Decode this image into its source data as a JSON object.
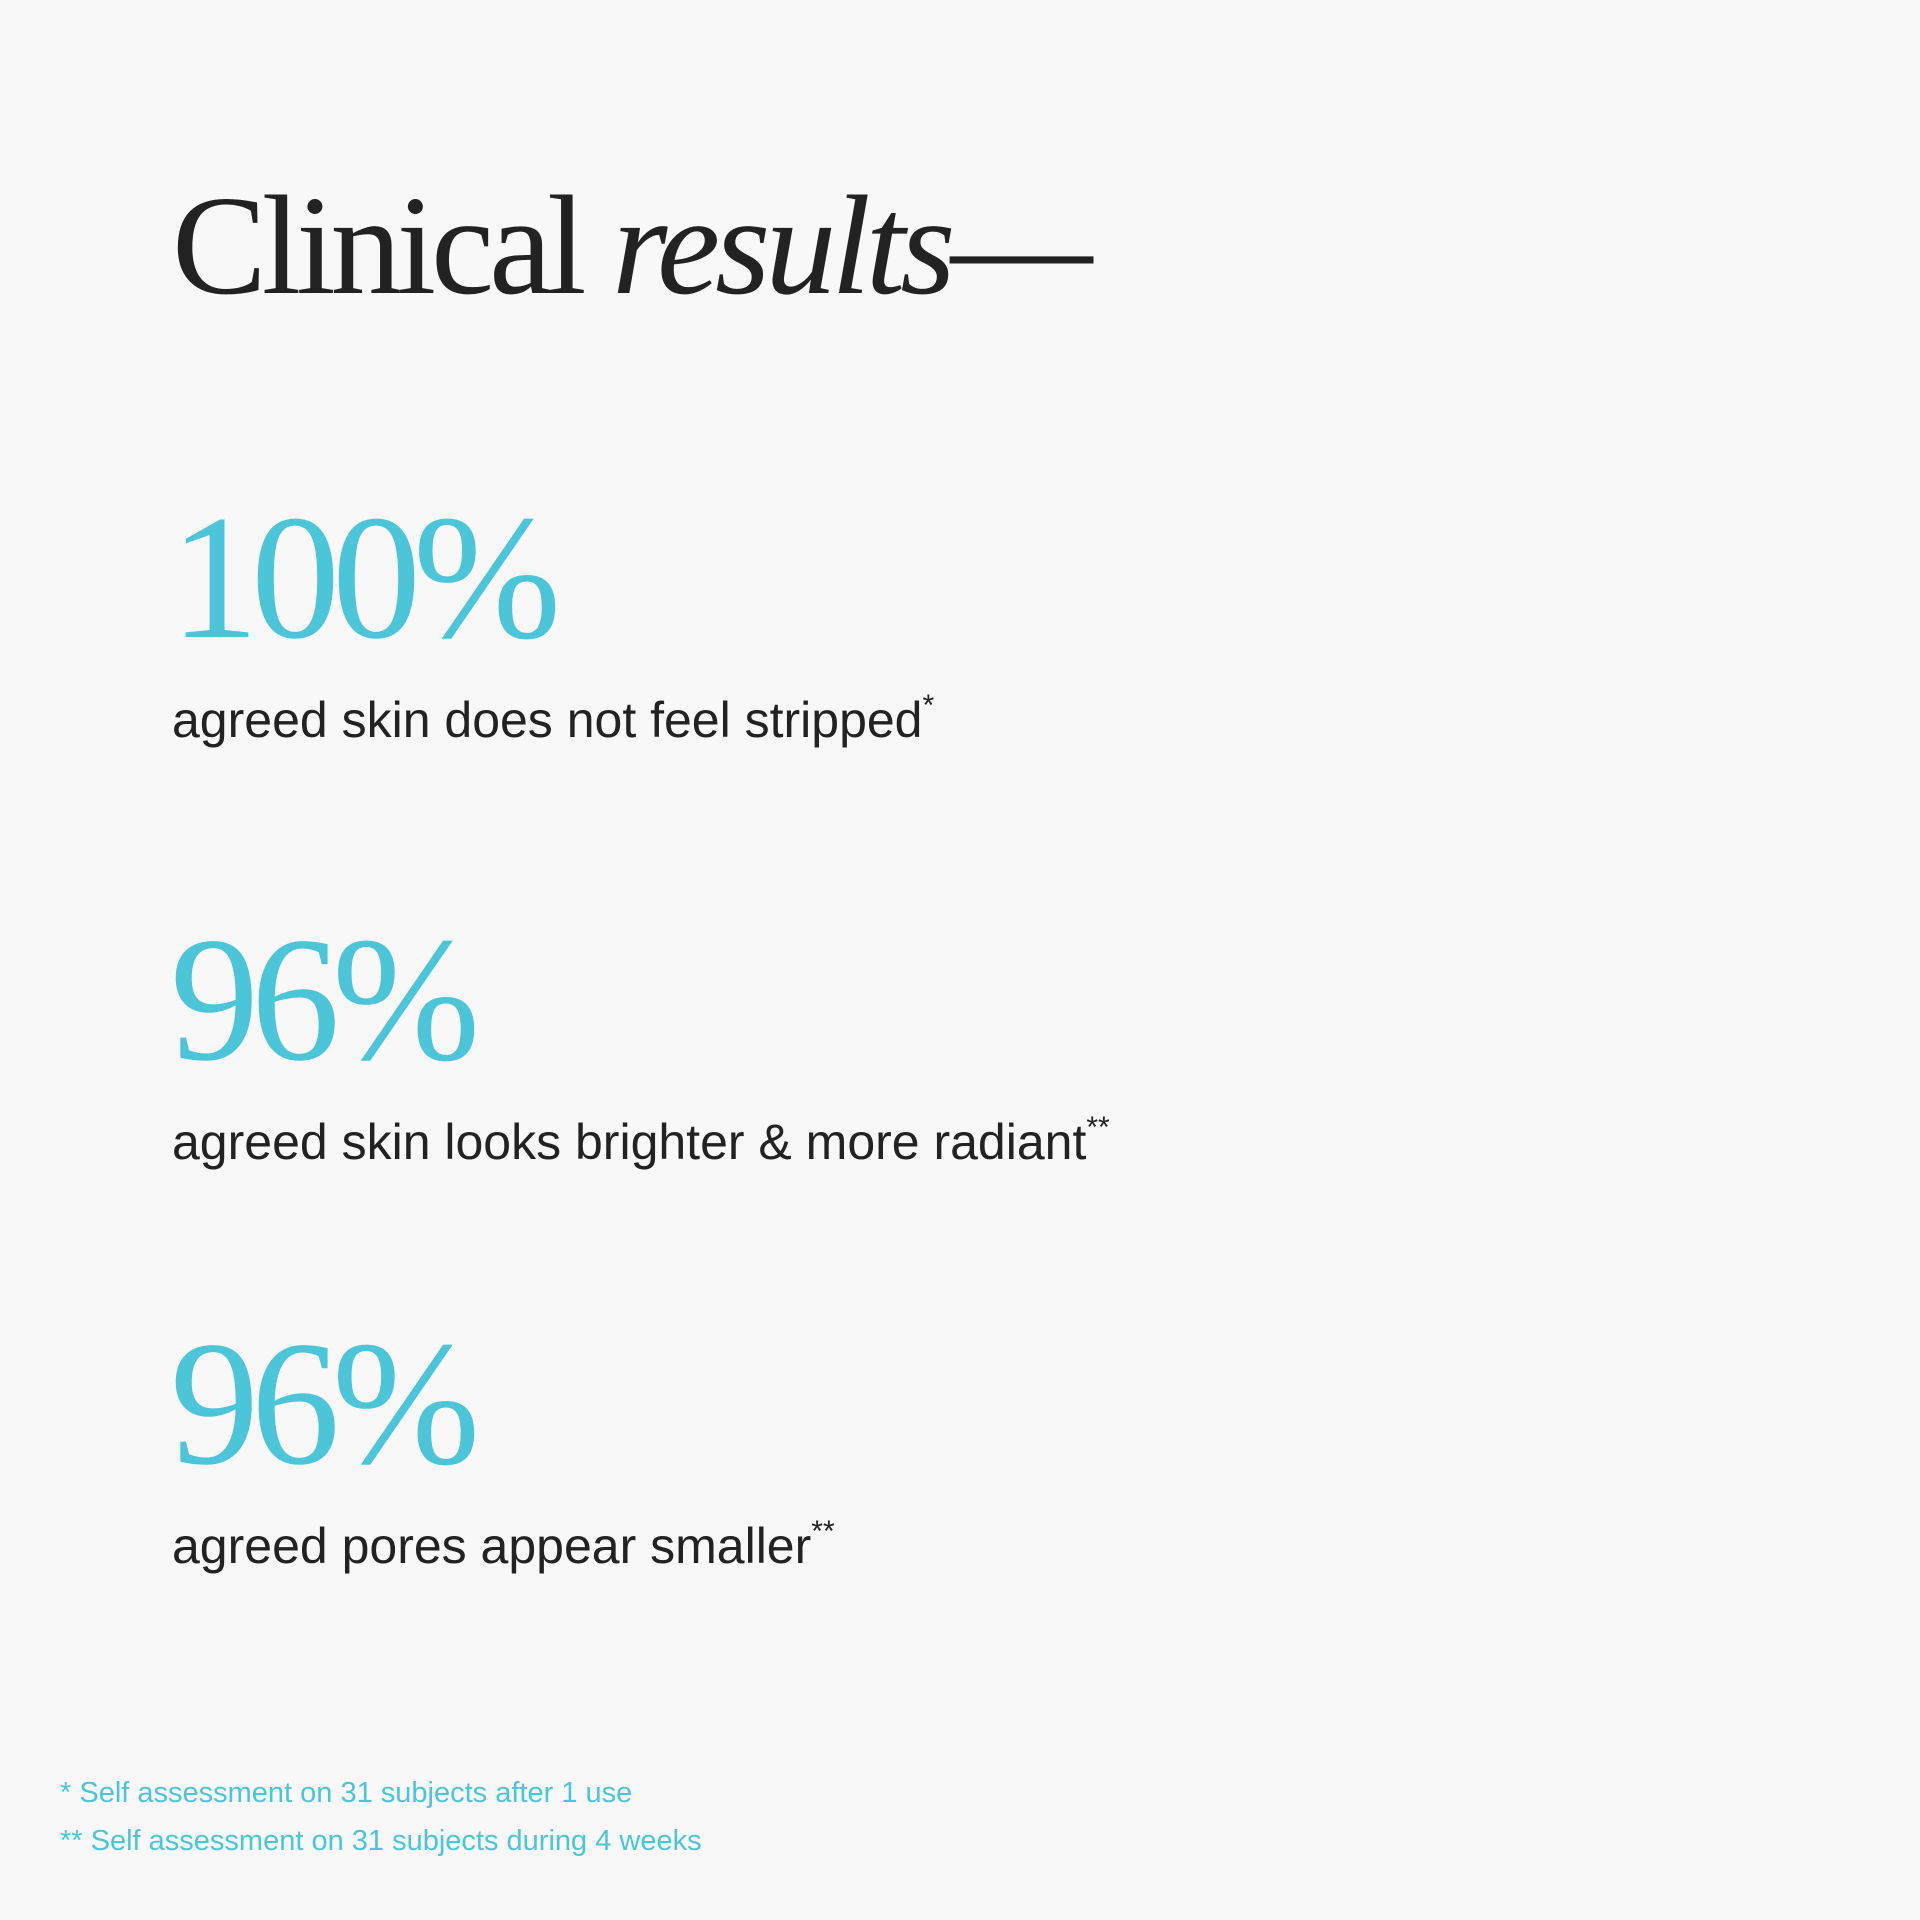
{
  "colors": {
    "accent": "#4cc5d9",
    "text": "#222222",
    "background": "#f8f8f8"
  },
  "header": {
    "title_regular": "Clinical",
    "title_italic": "results",
    "title_dash": "—"
  },
  "stats": [
    {
      "value": "100%",
      "label": "agreed skin does not feel stripped",
      "mark": "*"
    },
    {
      "value": "96%",
      "label": "agreed skin looks brighter & more radiant",
      "mark": "**"
    },
    {
      "value": "96%",
      "label": "agreed pores appear smaller",
      "mark": "**"
    }
  ],
  "footnotes": [
    {
      "mark": "*",
      "text": "Self assessment on 31 subjects after 1 use"
    },
    {
      "mark": "**",
      "text": "Self assessment on 31 subjects during 4 weeks"
    }
  ]
}
